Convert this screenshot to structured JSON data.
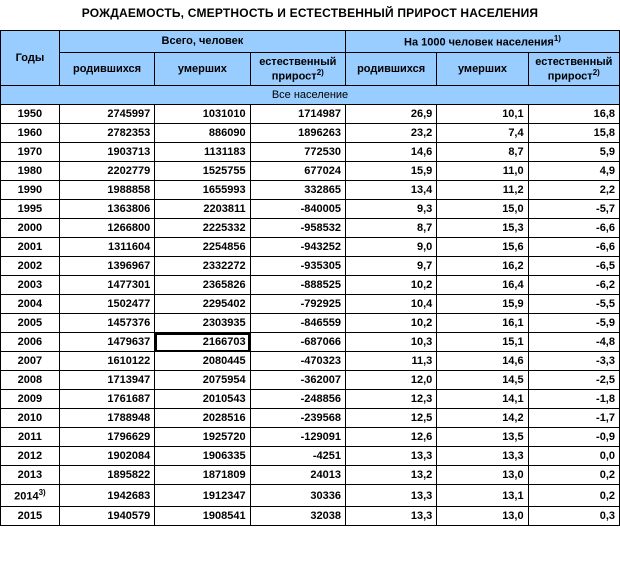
{
  "title": "РОЖДАЕМОСТЬ, СМЕРТНОСТЬ И ЕСТЕСТВЕННЫЙ ПРИРОСТ НАСЕЛЕНИЯ",
  "header": {
    "years": "Годы",
    "total_people": "Всего, человек",
    "per_1000": "На 1000 человек населения",
    "born": "родившихся",
    "died": "умерших",
    "nat_increase": "естественный прирост"
  },
  "section": "Все население",
  "superscripts": {
    "one": "1)",
    "two": "2)",
    "three": "3)"
  },
  "rows": [
    {
      "year": "1950",
      "born": "2745997",
      "died": "1031010",
      "inc": "1714987",
      "born_r": "26,9",
      "died_r": "10,1",
      "inc_r": "16,8"
    },
    {
      "year": "1960",
      "born": "2782353",
      "died": "886090",
      "inc": "1896263",
      "born_r": "23,2",
      "died_r": "7,4",
      "inc_r": "15,8"
    },
    {
      "year": "1970",
      "born": "1903713",
      "died": "1131183",
      "inc": "772530",
      "born_r": "14,6",
      "died_r": "8,7",
      "inc_r": "5,9"
    },
    {
      "year": "1980",
      "born": "2202779",
      "died": "1525755",
      "inc": "677024",
      "born_r": "15,9",
      "died_r": "11,0",
      "inc_r": "4,9"
    },
    {
      "year": "1990",
      "born": "1988858",
      "died": "1655993",
      "inc": "332865",
      "born_r": "13,4",
      "died_r": "11,2",
      "inc_r": "2,2"
    },
    {
      "year": "1995",
      "born": "1363806",
      "died": "2203811",
      "inc": "-840005",
      "born_r": "9,3",
      "died_r": "15,0",
      "inc_r": "-5,7"
    },
    {
      "year": "2000",
      "born": "1266800",
      "died": "2225332",
      "inc": "-958532",
      "born_r": "8,7",
      "died_r": "15,3",
      "inc_r": "-6,6"
    },
    {
      "year": "2001",
      "born": "1311604",
      "died": "2254856",
      "inc": "-943252",
      "born_r": "9,0",
      "died_r": "15,6",
      "inc_r": "-6,6"
    },
    {
      "year": "2002",
      "born": "1396967",
      "died": "2332272",
      "inc": "-935305",
      "born_r": "9,7",
      "died_r": "16,2",
      "inc_r": "-6,5"
    },
    {
      "year": "2003",
      "born": "1477301",
      "died": "2365826",
      "inc": "-888525",
      "born_r": "10,2",
      "died_r": "16,4",
      "inc_r": "-6,2"
    },
    {
      "year": "2004",
      "born": "1502477",
      "died": "2295402",
      "inc": "-792925",
      "born_r": "10,4",
      "died_r": "15,9",
      "inc_r": "-5,5"
    },
    {
      "year": "2005",
      "born": "1457376",
      "died": "2303935",
      "inc": "-846559",
      "born_r": "10,2",
      "died_r": "16,1",
      "inc_r": "-5,9"
    },
    {
      "year": "2006",
      "born": "1479637",
      "died": "2166703",
      "inc": "-687066",
      "born_r": "10,3",
      "died_r": "15,1",
      "inc_r": "-4,8",
      "selected": true
    },
    {
      "year": "2007",
      "born": "1610122",
      "died": "2080445",
      "inc": "-470323",
      "born_r": "11,3",
      "died_r": "14,6",
      "inc_r": "-3,3"
    },
    {
      "year": "2008",
      "born": "1713947",
      "died": "2075954",
      "inc": "-362007",
      "born_r": "12,0",
      "died_r": "14,5",
      "inc_r": "-2,5"
    },
    {
      "year": "2009",
      "born": "1761687",
      "died": "2010543",
      "inc": "-248856",
      "born_r": "12,3",
      "died_r": "14,1",
      "inc_r": "-1,8"
    },
    {
      "year": "2010",
      "born": "1788948",
      "died": "2028516",
      "inc": "-239568",
      "born_r": "12,5",
      "died_r": "14,2",
      "inc_r": "-1,7"
    },
    {
      "year": "2011",
      "born": "1796629",
      "died": "1925720",
      "inc": "-129091",
      "born_r": "12,6",
      "died_r": "13,5",
      "inc_r": "-0,9"
    },
    {
      "year": "2012",
      "born": "1902084",
      "died": "1906335",
      "inc": "-4251",
      "born_r": "13,3",
      "died_r": "13,3",
      "inc_r": "0,0"
    },
    {
      "year": "2013",
      "born": "1895822",
      "died": "1871809",
      "inc": "24013",
      "born_r": "13,2",
      "died_r": "13,0",
      "inc_r": "0,2"
    },
    {
      "year": "2014",
      "year_sup": "3)",
      "born": "1942683",
      "died": "1912347",
      "inc": "30336",
      "born_r": "13,3",
      "died_r": "13,1",
      "inc_r": "0,2"
    },
    {
      "year": "2015",
      "born": "1940579",
      "died": "1908541",
      "inc": "32038",
      "born_r": "13,3",
      "died_r": "13,0",
      "inc_r": "0,3"
    }
  ]
}
